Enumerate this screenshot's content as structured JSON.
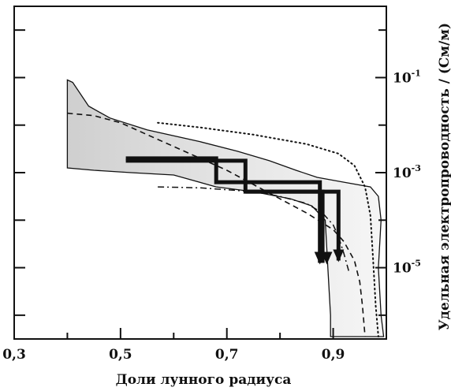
{
  "chart_data": {
    "type": "line",
    "xlabel": "Доли лунного радиуса",
    "ylabel": "Удельная электропроводность / (См/м)",
    "xlim": [
      0.3,
      1.0
    ],
    "ylog_lim": [
      -6.5,
      0.5
    ],
    "y_scale": "log",
    "grid": false,
    "x_ticks": [
      {
        "value": 0.3,
        "label": "0,3"
      },
      {
        "value": 0.5,
        "label": "0,5"
      },
      {
        "value": 0.7,
        "label": "0,7"
      },
      {
        "value": 0.9,
        "label": "0,9"
      }
    ],
    "x_minor_ticks": [
      0.4,
      0.6,
      0.8
    ],
    "y_ticks": [
      {
        "exponent": -1,
        "base": "10",
        "exp": "-1"
      },
      {
        "exponent": -3,
        "base": "10",
        "exp": "-3"
      },
      {
        "exponent": -5,
        "base": "10",
        "exp": "-5"
      }
    ],
    "y_minor_ticks": [
      0,
      -2,
      -4,
      -6
    ],
    "uncertainty_band": {
      "upper": [
        [
          0.4,
          -1.05
        ],
        [
          0.41,
          -1.1
        ],
        [
          0.44,
          -1.6
        ],
        [
          0.48,
          -1.85
        ],
        [
          0.55,
          -2.1
        ],
        [
          0.65,
          -2.35
        ],
        [
          0.72,
          -2.55
        ],
        [
          0.78,
          -2.75
        ],
        [
          0.83,
          -2.95
        ],
        [
          0.87,
          -3.1
        ],
        [
          0.92,
          -3.2
        ],
        [
          0.97,
          -3.3
        ],
        [
          0.985,
          -3.5
        ],
        [
          0.99,
          -4.0
        ],
        [
          0.985,
          -5.0
        ],
        [
          0.99,
          -6.0
        ],
        [
          0.995,
          -6.45
        ]
      ],
      "lower": [
        [
          0.4,
          -2.9
        ],
        [
          0.45,
          -2.95
        ],
        [
          0.52,
          -3.0
        ],
        [
          0.6,
          -3.05
        ],
        [
          0.68,
          -3.3
        ],
        [
          0.75,
          -3.4
        ],
        [
          0.82,
          -3.55
        ],
        [
          0.86,
          -3.7
        ],
        [
          0.885,
          -4.0
        ],
        [
          0.89,
          -5.0
        ],
        [
          0.895,
          -6.0
        ],
        [
          0.895,
          -6.45
        ]
      ]
    },
    "series": [
      {
        "style": "dashed",
        "values": [
          [
            0.4,
            -1.75
          ],
          [
            0.45,
            -1.8
          ],
          [
            0.5,
            -1.95
          ],
          [
            0.55,
            -2.2
          ],
          [
            0.6,
            -2.45
          ],
          [
            0.65,
            -2.7
          ],
          [
            0.7,
            -2.95
          ],
          [
            0.75,
            -3.25
          ],
          [
            0.8,
            -3.55
          ],
          [
            0.85,
            -3.85
          ],
          [
            0.9,
            -4.2
          ],
          [
            0.92,
            -4.45
          ],
          [
            0.94,
            -4.85
          ],
          [
            0.95,
            -5.3
          ],
          [
            0.955,
            -5.8
          ],
          [
            0.96,
            -6.45
          ]
        ]
      },
      {
        "style": "dotted",
        "values": [
          [
            0.57,
            -1.95
          ],
          [
            0.65,
            -2.05
          ],
          [
            0.75,
            -2.2
          ],
          [
            0.85,
            -2.4
          ],
          [
            0.91,
            -2.6
          ],
          [
            0.94,
            -2.85
          ],
          [
            0.96,
            -3.3
          ],
          [
            0.97,
            -3.9
          ],
          [
            0.975,
            -4.8
          ],
          [
            0.98,
            -5.8
          ],
          [
            0.985,
            -6.45
          ]
        ]
      },
      {
        "style": "dashdot",
        "values": [
          [
            0.57,
            -3.3
          ],
          [
            0.65,
            -3.32
          ],
          [
            0.75,
            -3.4
          ],
          [
            0.8,
            -3.5
          ],
          [
            0.85,
            -3.65
          ],
          [
            0.88,
            -3.85
          ],
          [
            0.9,
            -4.1
          ],
          [
            0.91,
            -4.35
          ],
          [
            0.92,
            -4.7
          ],
          [
            0.93,
            -5.1
          ]
        ]
      },
      {
        "style": "thick-step",
        "values": [
          [
            0.51,
            -2.7
          ],
          [
            0.68,
            -2.7
          ],
          [
            0.68,
            -3.2
          ],
          [
            0.875,
            -3.2
          ],
          [
            0.875,
            -4.9
          ]
        ]
      },
      {
        "style": "thick-step",
        "values": [
          [
            0.51,
            -2.75
          ],
          [
            0.69,
            -2.75
          ],
          [
            0.69,
            -2.75
          ],
          [
            0.735,
            -2.75
          ],
          [
            0.735,
            -3.4
          ],
          [
            0.88,
            -3.4
          ],
          [
            0.88,
            -4.9
          ]
        ]
      },
      {
        "style": "thick-step",
        "values": [
          [
            0.735,
            -3.4
          ],
          [
            0.91,
            -3.4
          ],
          [
            0.91,
            -4.85
          ]
        ]
      }
    ],
    "arrows": [
      {
        "x": 0.875,
        "y": -4.9
      },
      {
        "x": 0.888,
        "y": -4.9
      },
      {
        "x": 0.91,
        "y": -4.85
      }
    ]
  }
}
